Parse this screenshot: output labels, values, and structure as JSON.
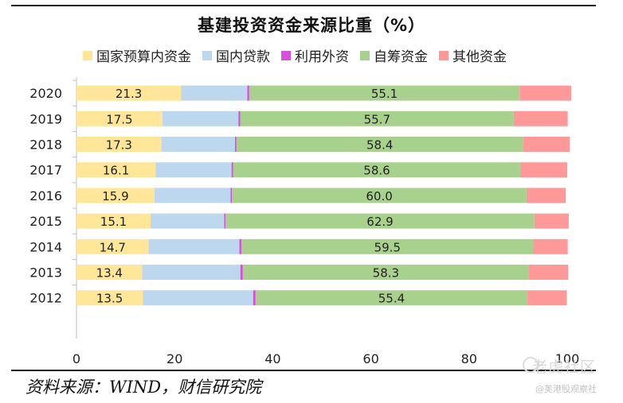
{
  "chart_data": {
    "type": "bar",
    "orientation": "horizontal",
    "stacked": true,
    "title": "基建投资资金来源比重（%）",
    "categories": [
      "2020",
      "2019",
      "2018",
      "2017",
      "2016",
      "2015",
      "2014",
      "2013",
      "2012"
    ],
    "series": [
      {
        "name": "国家预算内资金",
        "color": "#FFE699",
        "values": [
          21.3,
          17.5,
          17.3,
          16.1,
          15.9,
          15.1,
          14.7,
          13.4,
          13.5
        ],
        "show_labels": true
      },
      {
        "name": "国内贷款",
        "color": "#BDD7EE",
        "values": [
          13.5,
          15.5,
          15.0,
          15.5,
          15.5,
          15.0,
          18.5,
          20.0,
          22.5
        ],
        "show_labels": false
      },
      {
        "name": "利用外资",
        "color": "#D94FD9",
        "values": [
          0.4,
          0.4,
          0.3,
          0.3,
          0.3,
          0.3,
          0.4,
          0.5,
          0.5
        ],
        "show_labels": false
      },
      {
        "name": "自筹资金",
        "color": "#A9D18E",
        "values": [
          55.1,
          55.7,
          58.4,
          58.6,
          60.0,
          62.9,
          59.5,
          58.3,
          55.4
        ],
        "show_labels": true
      },
      {
        "name": "其他资金",
        "color": "#FF9999",
        "values": [
          10.5,
          11.0,
          9.5,
          9.5,
          8.0,
          7.0,
          7.0,
          8.0,
          8.0
        ],
        "show_labels": false
      }
    ],
    "xlim": [
      0,
      100
    ],
    "xticks": [
      "0",
      "20",
      "40",
      "60",
      "80",
      "100"
    ],
    "legend_position": "top",
    "grid": false
  },
  "source_note": "资料来源：WIND，财信研究院",
  "watermark": {
    "line1": "老虎社区",
    "line2": "@美港股观察社"
  }
}
